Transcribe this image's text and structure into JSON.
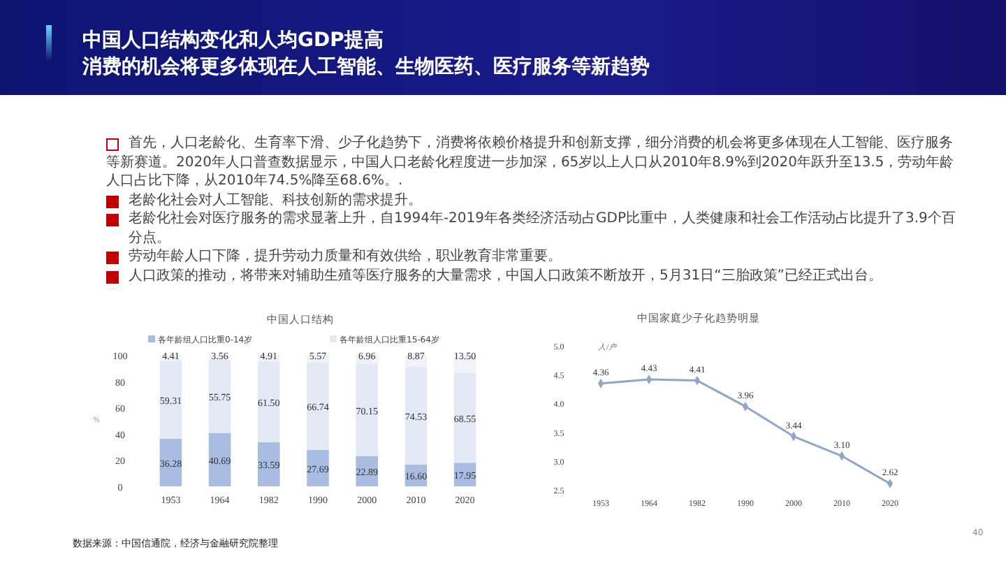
{
  "chart_data": [
    {
      "type": "other",
      "title": "中国人口结构变化和人均GDP提高",
      "subtitle": "消费的机会将更多体现在人工智能、生物医药、医疗服务等新趋势",
      "annotations": [
        "首先，人口老龄化、生育率下滑、少子化趋势下，消费将依赖价格提升和创新支撑，细分消费的机会将更多体现在人工智能、医疗服务等新赛道。2020年人口普查数据显示，中国人口老龄化程度进一步加深，65岁以上人口从2010年8.9%到2020年跃升至13.5，劳动年龄人口占比下降，从2010年74.5%降至68.6%。.",
        "老龄化社会对人工智能、科技创新的需求提升。",
        "老龄化社会对医疗服务的需求显著上升，自1994年-2019年各类经济活动占GDP比重中，人类健康和社会工作活动占比提升了3.9个百分点。",
        "劳动年龄人口下降，提升劳动力质量和有效供给，职业教育非常重要。",
        "人口政策的推动，将带来对辅助生殖等医疗服务的大量需求，中国人口政策不断放开，5月31日“三胎政策”已经正式出台。",
        "数据来源：中国信通院，经济与金融研究院整理",
        "40"
      ]
    },
    {
      "type": "bar",
      "title": "中国人口结构",
      "ylabel": "%",
      "stacked": true,
      "legend": "top",
      "categories": [
        "1953",
        "1964",
        "1982",
        "1990",
        "2000",
        "2010",
        "2020"
      ],
      "ylim": [
        0,
        100
      ],
      "yticks": [
        0,
        20,
        40,
        60,
        80,
        100
      ],
      "series": [
        {
          "name": "各年龄组人口比重0-14岁",
          "color": "#a9bde3",
          "values": [
            36.28,
            40.69,
            33.59,
            27.69,
            22.89,
            16.6,
            17.95
          ],
          "value_labels": [
            "36.28",
            "40.69",
            "33.59",
            "27.69",
            "22.89",
            "16.60",
            "17.95"
          ]
        },
        {
          "name": "各年龄组人口比重15-64岁",
          "color": "#e3eaf6",
          "values": [
            59.31,
            55.75,
            61.5,
            66.74,
            70.15,
            74.53,
            68.55
          ],
          "value_labels": [
            "59.31",
            "55.75",
            "61.50",
            "66.74",
            "70.15",
            "74.53",
            "68.55"
          ]
        },
        {
          "color": "#f0f3f9",
          "values": [
            4.41,
            3.56,
            4.91,
            5.57,
            6.96,
            8.87,
            13.5
          ],
          "value_labels": [
            "4.41",
            "3.56",
            "4.91",
            "5.57",
            "6.96",
            "8.87",
            "13.50"
          ]
        }
      ]
    },
    {
      "type": "line",
      "title": "中国家庭少子化趋势明显",
      "ylabel": "人/户",
      "marker": "diamond",
      "categories": [
        "1953",
        "1964",
        "1982",
        "1990",
        "2000",
        "2010",
        "2020"
      ],
      "ylim": [
        2.5,
        5
      ],
      "yticks": [
        {
          "value": 2.5,
          "label": "2.5"
        },
        {
          "value": 3,
          "label": "3.0"
        },
        {
          "value": 3.5,
          "label": "3.5"
        },
        {
          "value": 4,
          "label": "4.0"
        },
        {
          "value": 4.5,
          "label": "4.5"
        },
        {
          "value": 5,
          "label": "5.0"
        }
      ],
      "series": [
        {
          "color": "#8fa6c6",
          "values": [
            4.36,
            4.43,
            4.41,
            3.96,
            3.44,
            3.1,
            2.62
          ],
          "value_labels": [
            "4.36",
            "4.43",
            "4.41",
            "3.96",
            "3.44",
            "3.10",
            "2.62"
          ]
        }
      ]
    }
  ]
}
